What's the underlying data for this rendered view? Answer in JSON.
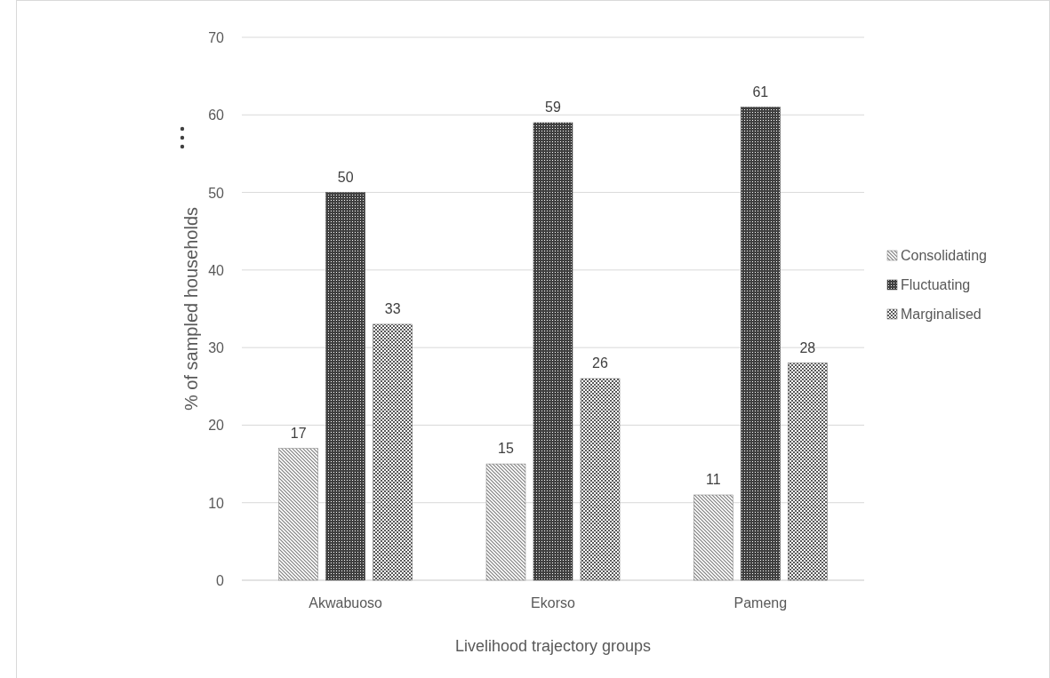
{
  "chart_data": {
    "type": "bar",
    "xlabel": "Livelihood trajectory groups",
    "ylabel": "% of sampled households",
    "categories": [
      "Akwabuoso",
      "Ekorso",
      "Pameng"
    ],
    "series": [
      {
        "name": "Consolidating",
        "color": "#7f7f7f",
        "values": [
          17,
          15,
          11
        ]
      },
      {
        "name": "Fluctuating",
        "color": "#404040",
        "values": [
          50,
          59,
          61
        ]
      },
      {
        "name": "Marginalised",
        "color": "#595959",
        "values": [
          33,
          26,
          28
        ]
      }
    ],
    "ylim": [
      0,
      70
    ],
    "yticks": [
      0,
      10,
      20,
      30,
      40,
      50,
      60,
      70
    ],
    "grid": "y",
    "legend": "right",
    "data_labels": true
  }
}
